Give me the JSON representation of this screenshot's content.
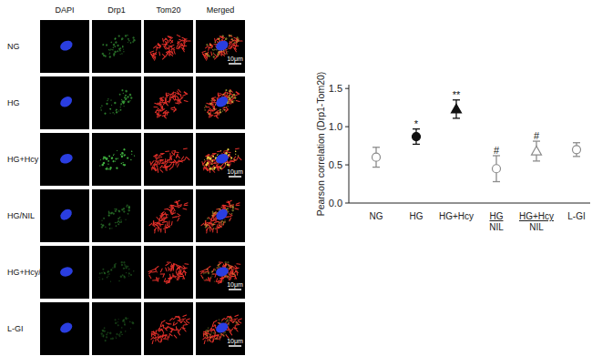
{
  "panels": {
    "columns": [
      "DAPI",
      "Drp1",
      "Tom20",
      "Merged"
    ],
    "rows": [
      {
        "label": "NG",
        "scale_bar": "10μm"
      },
      {
        "label": "HG"
      },
      {
        "label": "HG+Hcy",
        "scale_bar": "10μm"
      },
      {
        "label": "HG/NIL"
      },
      {
        "label": "HG+Hcy/NIL",
        "scale_bar": "10μm"
      },
      {
        "label": "L-GI",
        "scale_bar": "10μm"
      }
    ]
  },
  "chart_data": {
    "type": "scatter",
    "y_label": "Pearson correlation (Drp1-Tom20)",
    "categories": [
      "NG",
      "HG",
      "HG+Hcy",
      "HG\nNIL",
      "HG+Hcy\nNIL",
      "L-GI"
    ],
    "ylim": [
      0,
      1.55
    ],
    "yticks": [
      {
        "value": 0,
        "label": "0.0"
      },
      {
        "value": 0.5,
        "label": "0.5"
      },
      {
        "value": 1.0,
        "label": "1.0"
      },
      {
        "value": 1.5,
        "label": "1.5"
      }
    ],
    "grid": false,
    "annotations": [
      null,
      "*",
      "**",
      "#",
      "#",
      null
    ],
    "series": [
      {
        "values": [
          0.6,
          null,
          null,
          null,
          null,
          null
        ],
        "errors": [
          0.13,
          null,
          null,
          null,
          null,
          null
        ],
        "color": "#8c8c8c",
        "marker": "circle-open"
      },
      {
        "values": [
          null,
          0.87,
          null,
          null,
          null,
          null
        ],
        "errors": [
          null,
          0.1,
          null,
          null,
          null,
          null
        ],
        "color": "#111111",
        "marker": "circle"
      },
      {
        "values": [
          null,
          null,
          1.23,
          null,
          null,
          null
        ],
        "errors": [
          null,
          null,
          0.12,
          null,
          null,
          null
        ],
        "color": "#111111",
        "marker": "triangle"
      },
      {
        "values": [
          null,
          null,
          null,
          0.45,
          null,
          null
        ],
        "errors": [
          null,
          null,
          null,
          0.17,
          null,
          null
        ],
        "color": "#8c8c8c",
        "marker": "circle-open"
      },
      {
        "values": [
          null,
          null,
          null,
          null,
          0.68,
          null
        ],
        "errors": [
          null,
          null,
          null,
          null,
          0.13,
          null
        ],
        "color": "#8c8c8c",
        "marker": "triangle-open"
      },
      {
        "values": [
          null,
          null,
          null,
          null,
          null,
          0.7
        ],
        "errors": [
          null,
          null,
          null,
          null,
          null,
          0.09
        ],
        "color": "#8c8c8c",
        "marker": "circle-open"
      }
    ]
  }
}
